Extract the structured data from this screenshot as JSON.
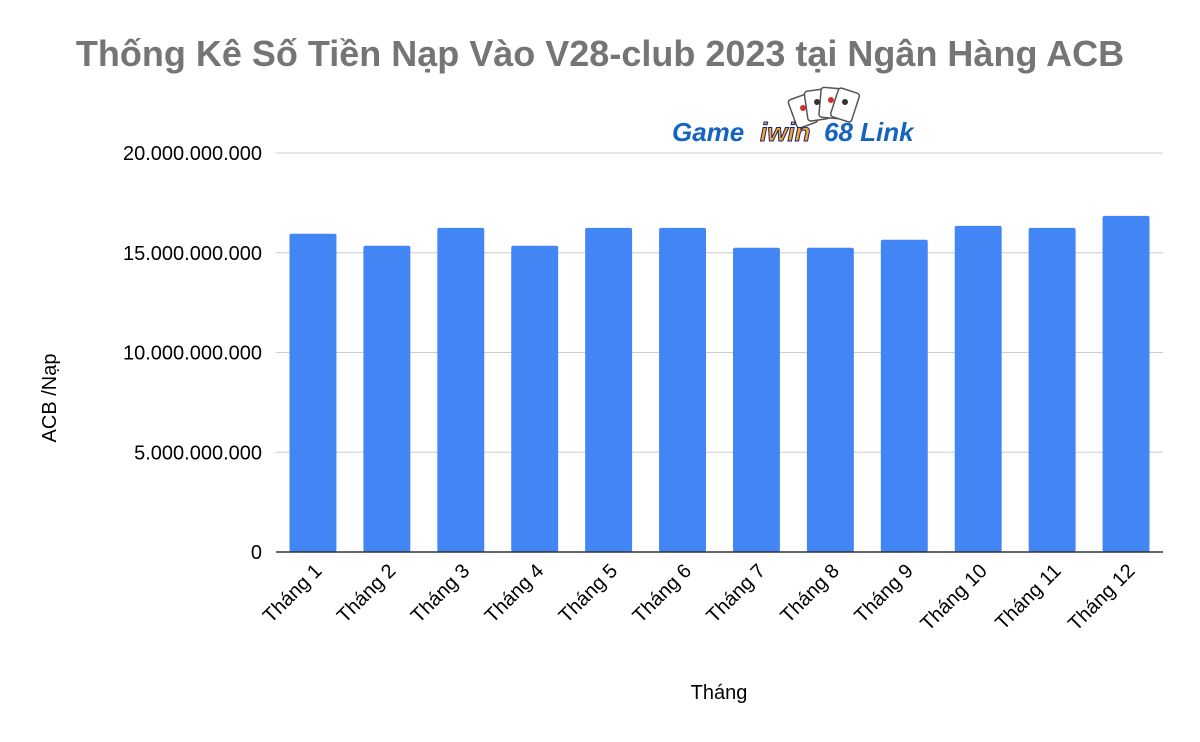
{
  "chart_data": {
    "type": "bar",
    "title": "Thống Kê Số Tiền Nạp Vào V28-club 2023 tại Ngân Hàng ACB",
    "xlabel": "Tháng",
    "ylabel": "ACB /Nạp",
    "categories": [
      "Tháng 1",
      "Tháng 2",
      "Tháng 3",
      "Tháng 4",
      "Tháng 5",
      "Tháng 6",
      "Tháng 7",
      "Tháng 8",
      "Tháng 9",
      "Tháng 10",
      "Tháng 11",
      "Tháng 12"
    ],
    "values": [
      15950000000,
      15350000000,
      16250000000,
      15350000000,
      16250000000,
      16250000000,
      15250000000,
      15250000000,
      15650000000,
      16350000000,
      16250000000,
      16850000000
    ],
    "ylim": [
      0,
      20000000000
    ],
    "yticks": [
      0,
      5000000000,
      10000000000,
      15000000000,
      20000000000
    ],
    "ytick_labels": [
      "0",
      "5.000.000.000",
      "10.000.000.000",
      "15.000.000.000",
      "20.000.000.000"
    ],
    "bar_color": "#4285f4",
    "grid": true,
    "legend": "none"
  },
  "watermark": {
    "text_game": "Game",
    "text_brand": "iwin",
    "text_tail": "68 Link",
    "icon": "playing-cards-icon"
  }
}
